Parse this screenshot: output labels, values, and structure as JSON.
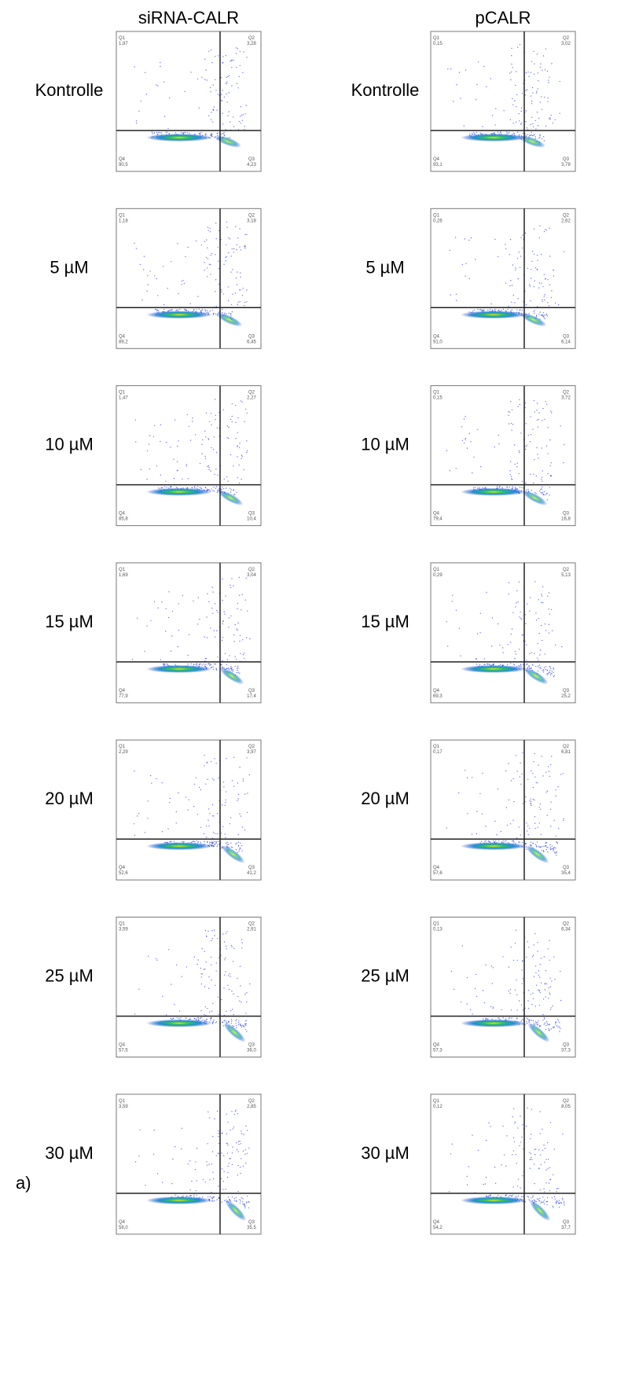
{
  "label": "a)",
  "panels": [
    {
      "title": "siRNA-CALR",
      "rows": [
        {
          "label": "Kontrolle",
          "quadrants": [
            {
              "name": "Q1",
              "value": "1,97"
            },
            {
              "name": "Q2",
              "value": "3,28"
            },
            {
              "name": "Q4",
              "value": "90,5"
            },
            {
              "name": "Q3",
              "value": "4,23"
            }
          ]
        },
        {
          "label": "5 µM",
          "quadrants": [
            {
              "name": "Q1",
              "value": "1,18"
            },
            {
              "name": "Q2",
              "value": "3,18"
            },
            {
              "name": "Q4",
              "value": "89,2"
            },
            {
              "name": "Q3",
              "value": "6,45"
            }
          ]
        },
        {
          "label": "10 µM",
          "quadrants": [
            {
              "name": "Q1",
              "value": "1,47"
            },
            {
              "name": "Q2",
              "value": "2,27"
            },
            {
              "name": "Q4",
              "value": "85,8"
            },
            {
              "name": "Q3",
              "value": "10,4"
            }
          ]
        },
        {
          "label": "15 µM",
          "quadrants": [
            {
              "name": "Q1",
              "value": "1,69"
            },
            {
              "name": "Q2",
              "value": "3,04"
            },
            {
              "name": "Q4",
              "value": "77,9"
            },
            {
              "name": "Q3",
              "value": "17,4"
            }
          ]
        },
        {
          "label": "20 µM",
          "quadrants": [
            {
              "name": "Q1",
              "value": "2,29"
            },
            {
              "name": "Q2",
              "value": "3,97"
            },
            {
              "name": "Q4",
              "value": "52,6"
            },
            {
              "name": "Q3",
              "value": "41,2"
            }
          ]
        },
        {
          "label": "25 µM",
          "quadrants": [
            {
              "name": "Q1",
              "value": "3,59"
            },
            {
              "name": "Q2",
              "value": "2,91"
            },
            {
              "name": "Q4",
              "value": "57,5"
            },
            {
              "name": "Q3",
              "value": "36,0"
            }
          ]
        },
        {
          "label": "30 µM",
          "quadrants": [
            {
              "name": "Q1",
              "value": "3,59"
            },
            {
              "name": "Q2",
              "value": "2,85"
            },
            {
              "name": "Q4",
              "value": "58,0"
            },
            {
              "name": "Q3",
              "value": "35,5"
            }
          ]
        }
      ]
    },
    {
      "title": "pCALR",
      "rows": [
        {
          "label": "Kontrolle",
          "quadrants": [
            {
              "name": "Q1",
              "value": "0,15"
            },
            {
              "name": "Q2",
              "value": "3,02"
            },
            {
              "name": "Q4",
              "value": "93,1"
            },
            {
              "name": "Q3",
              "value": "3,78"
            }
          ]
        },
        {
          "label": "5 µM",
          "quadrants": [
            {
              "name": "Q1",
              "value": "0,26"
            },
            {
              "name": "Q2",
              "value": "2,62"
            },
            {
              "name": "Q4",
              "value": "91,0"
            },
            {
              "name": "Q3",
              "value": "6,14"
            }
          ]
        },
        {
          "label": "10 µM",
          "quadrants": [
            {
              "name": "Q1",
              "value": "0,15"
            },
            {
              "name": "Q2",
              "value": "3,72"
            },
            {
              "name": "Q4",
              "value": "79,4"
            },
            {
              "name": "Q3",
              "value": "16,8"
            }
          ]
        },
        {
          "label": "15 µM",
          "quadrants": [
            {
              "name": "Q1",
              "value": "0,29"
            },
            {
              "name": "Q2",
              "value": "5,13"
            },
            {
              "name": "Q4",
              "value": "69,3"
            },
            {
              "name": "Q3",
              "value": "25,2"
            }
          ]
        },
        {
          "label": "20 µM",
          "quadrants": [
            {
              "name": "Q1",
              "value": "0,17"
            },
            {
              "name": "Q2",
              "value": "6,81"
            },
            {
              "name": "Q4",
              "value": "57,6"
            },
            {
              "name": "Q3",
              "value": "35,4"
            }
          ]
        },
        {
          "label": "25 µM",
          "quadrants": [
            {
              "name": "Q1",
              "value": "0,13"
            },
            {
              "name": "Q2",
              "value": "6,34"
            },
            {
              "name": "Q4",
              "value": "57,3"
            },
            {
              "name": "Q3",
              "value": "37,3"
            }
          ]
        },
        {
          "label": "30 µM",
          "quadrants": [
            {
              "name": "Q1",
              "value": "0,12"
            },
            {
              "name": "Q2",
              "value": "8,05"
            },
            {
              "name": "Q4",
              "value": "54,2"
            },
            {
              "name": "Q3",
              "value": "37,7"
            }
          ]
        }
      ]
    }
  ]
}
